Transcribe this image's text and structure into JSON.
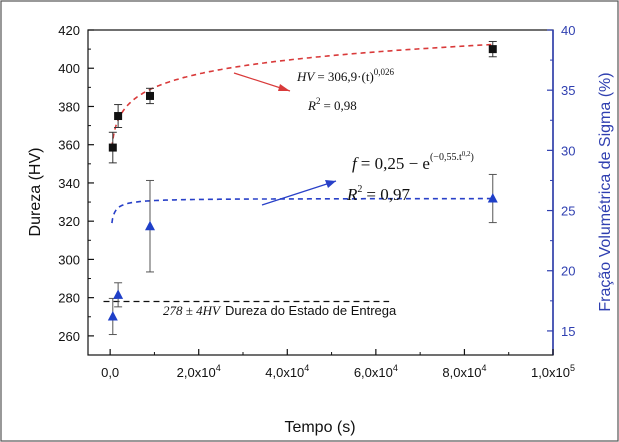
{
  "chart_data": {
    "type": "scatter",
    "xlabel": "Tempo (s)",
    "ylabel_left": "Dureza (HV)",
    "ylabel_right": "Fração Volumétrica de Sigma (%)",
    "xlim": [
      -5000,
      100000
    ],
    "ylim_left": [
      250,
      420
    ],
    "ylim_right": [
      13,
      40
    ],
    "x_ticks": [
      0,
      20000,
      40000,
      60000,
      80000,
      100000
    ],
    "x_tick_labels": [
      "0,0",
      "2,0x10",
      "4,0x10",
      "6,0x10",
      "8,0x10",
      "1,0x10"
    ],
    "x_tick_exponents": [
      "",
      "4",
      "4",
      "4",
      "4",
      "5"
    ],
    "y_left_ticks": [
      260,
      280,
      300,
      320,
      340,
      360,
      380,
      400,
      420
    ],
    "y_left_tick_labels": [
      "260",
      "280",
      "300",
      "320",
      "340",
      "360",
      "380",
      "400",
      "420"
    ],
    "y_right_ticks": [
      15,
      20,
      25,
      30,
      35,
      40
    ],
    "y_right_tick_labels": [
      "15",
      "20",
      "25",
      "30",
      "35",
      "40"
    ],
    "grid": false,
    "series": [
      {
        "axis": "left",
        "marker": "square",
        "color": "#111111",
        "x": [
          600,
          1800,
          9000,
          86400
        ],
        "y": [
          358.5,
          375,
          385.5,
          410
        ],
        "yerr": [
          8,
          6,
          4,
          4
        ]
      },
      {
        "axis": "right",
        "marker": "triangle",
        "color": "#1f3fc8",
        "x": [
          600,
          1800,
          9000,
          86400
        ],
        "y": [
          16.2,
          18.0,
          23.7,
          26.0
        ],
        "yerr": [
          1.5,
          1.0,
          3.8,
          2.0
        ]
      }
    ],
    "fit_curves": [
      {
        "axis": "left",
        "color": "#d93a3a",
        "model": "power",
        "a": 306.9,
        "b": 0.026,
        "x_range": [
          400,
          86400
        ]
      },
      {
        "axis": "right",
        "color": "#2840c8",
        "model": "stretched_exp",
        "a": 26,
        "k": 0.55,
        "n": 0.2,
        "x_range": [
          400,
          86400
        ]
      }
    ],
    "reference_line": {
      "axis": "left",
      "y": 278,
      "x_range": [
        -1500,
        63000
      ],
      "color": "#111111"
    },
    "annotations": {
      "hv_equation_lhs": "HV",
      "hv_equation_rhs": "= 306,9·(t)",
      "hv_equation_exp": "0,026",
      "hv_r2_label": "R",
      "hv_r2_sup": "2",
      "hv_r2_value": "= 0,98",
      "f_equation_lhs": "f",
      "f_equation_rhs": "= 0,25 − e",
      "f_equation_exp": "(−0,55.t",
      "f_equation_exp_sup": "0,2",
      "f_equation_exp_close": ")",
      "f_r2_label": "R",
      "f_r2_sup": "2",
      "f_r2_value": "= 0,97",
      "reference_prefix": "278 ± 4HV",
      "reference_text": "Dureza do Estado de Entrega"
    },
    "colors": {
      "hardness": "#111111",
      "sigma": "#1f3fc8",
      "hv_fit": "#d93a3a",
      "f_fit": "#2840c8",
      "right_axis": "#2f3fb0"
    }
  }
}
